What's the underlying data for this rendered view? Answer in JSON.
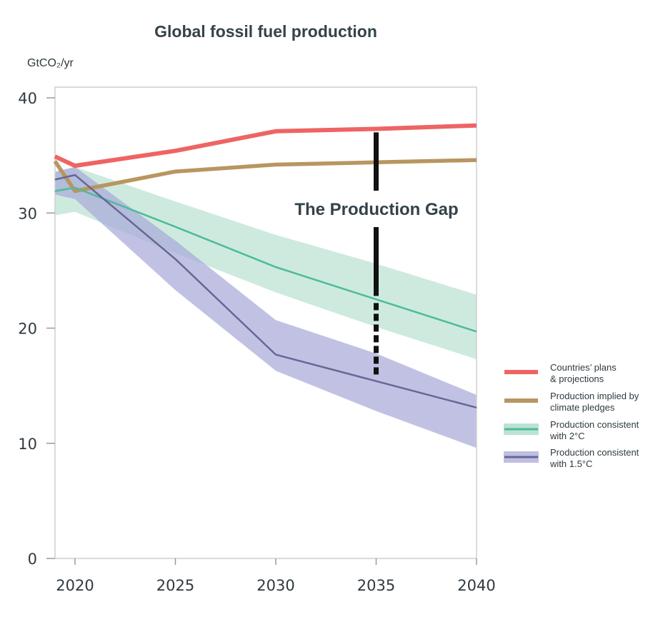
{
  "chart_data": {
    "type": "line",
    "title": "Global fossil fuel production",
    "ylabel": "GtCO₂/yr",
    "xlabel": "",
    "xlim": [
      2019,
      2040
    ],
    "ylim": [
      0,
      40
    ],
    "x_ticks": [
      "2020",
      "2025",
      "2030",
      "2035",
      "2040"
    ],
    "y_ticks": [
      "0",
      "10",
      "20",
      "30",
      "40"
    ],
    "grid": false,
    "legend_position": "right",
    "annotation": "The Production Gap",
    "series": [
      {
        "key": "plans",
        "legend": [
          "Countries’ plans",
          "& projections"
        ],
        "color": "#ee6464",
        "x": [
          2019,
          2020,
          2025,
          2030,
          2035,
          2040
        ],
        "y": [
          34.9,
          34.1,
          35.4,
          37.1,
          37.3,
          37.6
        ]
      },
      {
        "key": "pledges",
        "legend": [
          "Production implied by",
          " climate pledges"
        ],
        "color": "#b89660",
        "x": [
          2019,
          2020,
          2025,
          2030,
          2035,
          2040
        ],
        "y": [
          34.5,
          31.9,
          33.6,
          34.2,
          34.4,
          34.6
        ]
      },
      {
        "key": "two_deg",
        "legend": [
          "Production consistent",
          "with 2°C"
        ],
        "color": "#4dbb9b",
        "band_color": "#a6d8c4",
        "x": [
          2019,
          2020,
          2025,
          2030,
          2035,
          2040
        ],
        "y": [
          31.9,
          32.2,
          28.8,
          25.3,
          22.5,
          19.7
        ],
        "band_upper": [
          33.5,
          34.0,
          31.0,
          28.1,
          25.6,
          22.9
        ],
        "band_lower": [
          29.8,
          30.1,
          26.5,
          23.1,
          20.1,
          17.3
        ]
      },
      {
        "key": "one_five_deg",
        "legend": [
          "Production consistent",
          "with 1.5°C"
        ],
        "color": "#676796",
        "band_color": "#a9aad8",
        "x": [
          2019,
          2020,
          2025,
          2030,
          2035,
          2040
        ],
        "y": [
          32.9,
          33.3,
          26.0,
          17.7,
          15.4,
          13.1
        ],
        "band_upper": [
          33.6,
          34.0,
          27.6,
          20.7,
          17.8,
          14.2
        ],
        "band_lower": [
          31.6,
          31.2,
          23.3,
          16.3,
          12.8,
          9.6
        ]
      }
    ],
    "gap_indicator": {
      "x": 2035,
      "y_top": 37.0,
      "y_bottom": 15.7,
      "solid_to": 22.8
    }
  }
}
